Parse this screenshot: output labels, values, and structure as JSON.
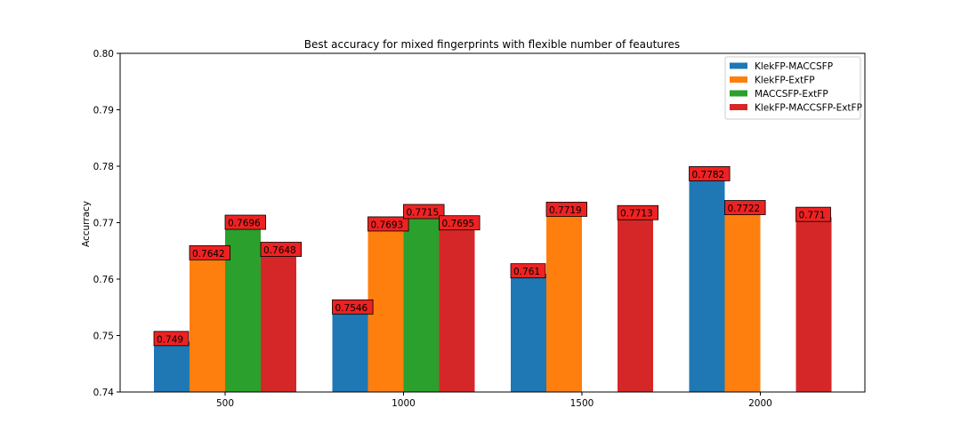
{
  "chart_data": {
    "type": "bar",
    "title": "Best accuracy for mixed fingerprints with flexible number of feautures",
    "xlabel": "",
    "ylabel": "Accurracy",
    "categories": [
      "500",
      "1000",
      "1500",
      "2000"
    ],
    "ylim": [
      0.74,
      0.8
    ],
    "yticks": [
      "0.74",
      "0.75",
      "0.76",
      "0.77",
      "0.78",
      "0.79",
      "0.80"
    ],
    "legend_position": "top-right",
    "grid": false,
    "series": [
      {
        "name": "KlekFP-MACCSFP",
        "color": "#1f77b4",
        "values": [
          0.749,
          0.7546,
          0.761,
          0.7782
        ],
        "labels": [
          "0.749",
          "0.7546",
          "0.761",
          "0.7782"
        ]
      },
      {
        "name": "KlekFP-ExtFP",
        "color": "#ff7f0e",
        "values": [
          0.7642,
          0.7693,
          0.7719,
          0.7722
        ],
        "labels": [
          "0.7642",
          "0.7693",
          "0.7719",
          "0.7722"
        ]
      },
      {
        "name": "MACCSFP-ExtFP",
        "color": "#2ca02c",
        "values": [
          0.7696,
          0.7715,
          null,
          null
        ],
        "labels": [
          "0.7696",
          "0.7715",
          null,
          null
        ]
      },
      {
        "name": "KlekFP-MACCSFP-ExtFP",
        "color": "#d62728",
        "values": [
          0.7648,
          0.7695,
          0.7713,
          0.771
        ],
        "labels": [
          "0.7648",
          "0.7695",
          "0.7713",
          "0.771"
        ]
      }
    ],
    "label_box_color": "#ee2222"
  }
}
